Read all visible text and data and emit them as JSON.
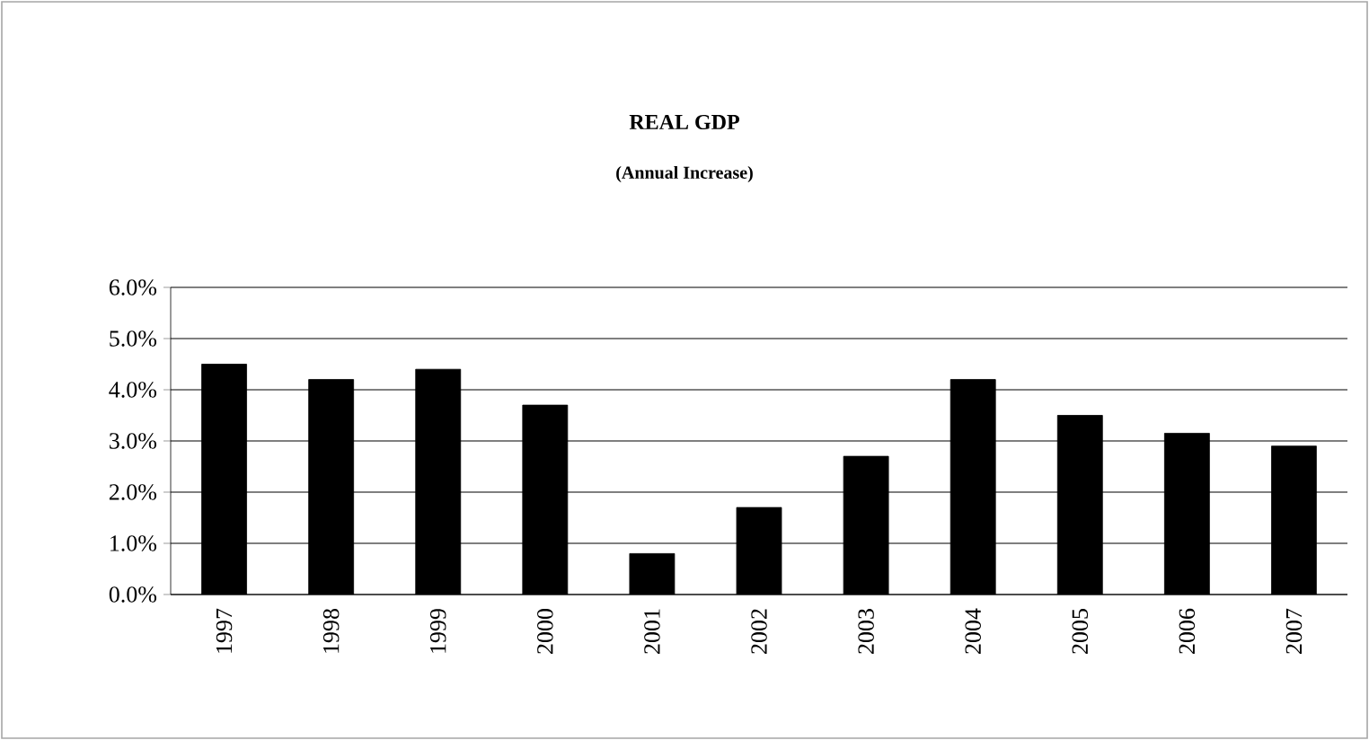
{
  "chart_data": {
    "type": "bar",
    "title": "REAL GDP",
    "subtitle": "(Annual Increase)",
    "categories": [
      "1997",
      "1998",
      "1999",
      "2000",
      "2001",
      "2002",
      "2003",
      "2004",
      "2005",
      "2006",
      "2007"
    ],
    "values": [
      4.5,
      4.2,
      4.4,
      3.7,
      0.8,
      1.7,
      2.7,
      4.2,
      3.5,
      3.15,
      2.9
    ],
    "color": "#000000",
    "ylim": [
      0,
      6
    ],
    "yticks": [
      {
        "value": 0,
        "label": "0.0%"
      },
      {
        "value": 1,
        "label": "1.0%"
      },
      {
        "value": 2,
        "label": "2.0%"
      },
      {
        "value": 3,
        "label": "3.0%"
      },
      {
        "value": 4,
        "label": "4.0%"
      },
      {
        "value": 5,
        "label": "5.0%"
      },
      {
        "value": 6,
        "label": "6.0%"
      }
    ],
    "grid": "y"
  }
}
